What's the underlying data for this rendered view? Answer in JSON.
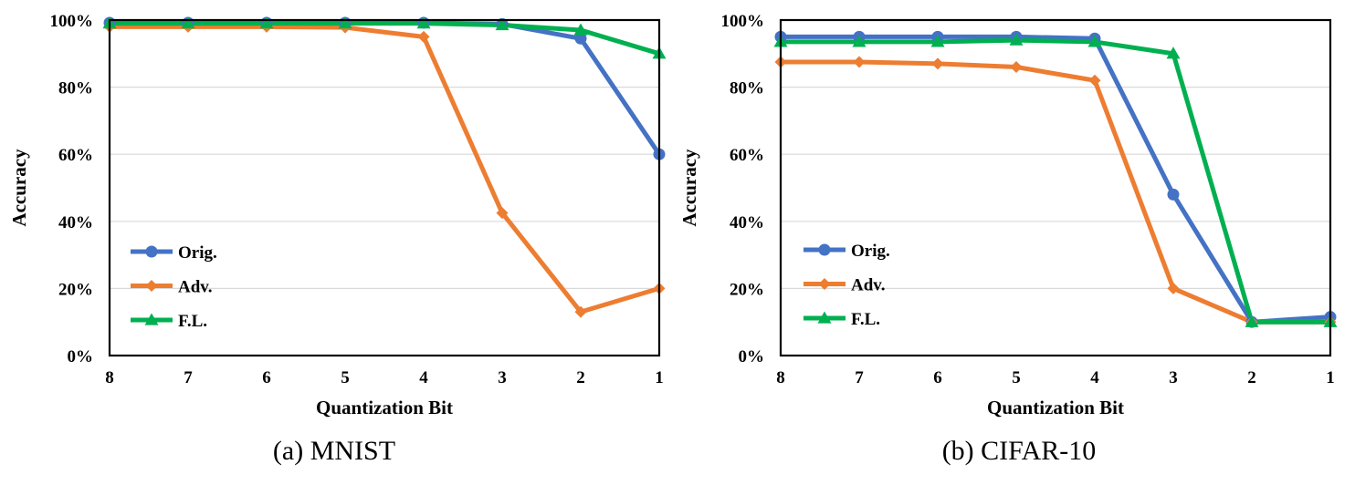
{
  "chart_data": [
    {
      "type": "line",
      "caption": "(a) MNIST",
      "xlabel": "Quantization Bit",
      "ylabel": "Accuracy",
      "categories": [
        "8",
        "7",
        "6",
        "5",
        "4",
        "3",
        "2",
        "1"
      ],
      "ylim": [
        0,
        100
      ],
      "yticks": [
        "0%",
        "20%",
        "40%",
        "60%",
        "80%",
        "100%"
      ],
      "grid": true,
      "legend_position": "bottom-left",
      "series": [
        {
          "name": "Orig.",
          "color": "#4472C4",
          "marker": "circle",
          "values": [
            99.2,
            99.2,
            99.2,
            99.2,
            99.2,
            98.8,
            94.5,
            60
          ]
        },
        {
          "name": "Adv.",
          "color": "#ED7D31",
          "marker": "diamond",
          "values": [
            98,
            98,
            98,
            97.8,
            95,
            42.5,
            13,
            20
          ]
        },
        {
          "name": "F.L.",
          "color": "#00B050",
          "marker": "triangle",
          "values": [
            99,
            99,
            99,
            99,
            99,
            98.5,
            97,
            90
          ]
        }
      ]
    },
    {
      "type": "line",
      "caption": "(b) CIFAR-10",
      "xlabel": "Quantization Bit",
      "ylabel": "Accuracy",
      "categories": [
        "8",
        "7",
        "6",
        "5",
        "4",
        "3",
        "2",
        "1"
      ],
      "ylim": [
        0,
        100
      ],
      "yticks": [
        "0%",
        "20%",
        "40%",
        "60%",
        "80%",
        "100%"
      ],
      "grid": true,
      "legend_position": "bottom-left",
      "series": [
        {
          "name": "Orig.",
          "color": "#4472C4",
          "marker": "circle",
          "values": [
            95,
            95,
            95,
            95,
            94.5,
            48,
            10,
            11.5
          ]
        },
        {
          "name": "Adv.",
          "color": "#ED7D31",
          "marker": "diamond",
          "values": [
            87.5,
            87.5,
            87,
            86,
            82,
            20,
            10,
            10
          ]
        },
        {
          "name": "F.L.",
          "color": "#00B050",
          "marker": "triangle",
          "values": [
            93.5,
            93.5,
            93.5,
            94,
            93.5,
            90,
            10,
            10
          ]
        }
      ]
    }
  ]
}
